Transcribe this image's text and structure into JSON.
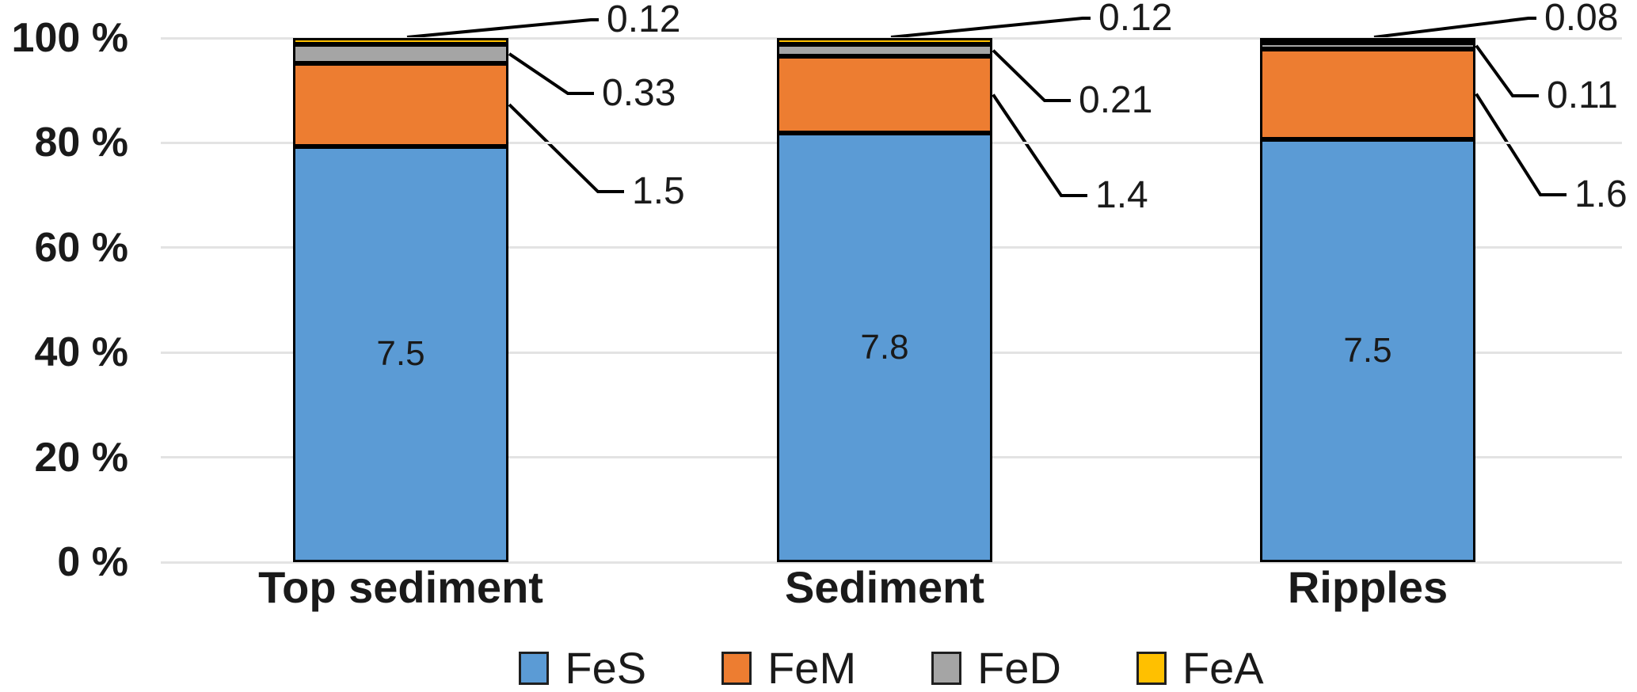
{
  "chart_data": {
    "type": "bar",
    "subtype": "stacked-100-percent",
    "title": "",
    "xlabel": "",
    "ylabel": "",
    "categories": [
      "Top sediment",
      "Sediment",
      "Ripples"
    ],
    "series": [
      {
        "name": "FeS",
        "color": "#5B9BD5",
        "values": [
          7.5,
          7.8,
          7.5
        ],
        "label_style": "inside"
      },
      {
        "name": "FeM",
        "color": "#ED7D31",
        "values": [
          1.5,
          1.4,
          1.6
        ],
        "label_style": "callout"
      },
      {
        "name": "FeD",
        "color": "#A5A5A5",
        "values": [
          0.33,
          0.21,
          0.11
        ],
        "label_style": "callout"
      },
      {
        "name": "FeA",
        "color": "#FFC000",
        "values": [
          0.12,
          0.12,
          0.08
        ],
        "label_style": "callout"
      }
    ],
    "data_labels": {
      "inside": [
        "7.5",
        "7.8",
        "7.5"
      ],
      "callouts": [
        {
          "category": "Top sediment",
          "FeM": "1.5",
          "FeD": "0.33",
          "FeA": "0.12"
        },
        {
          "category": "Sediment",
          "FeM": "1.4",
          "FeD": "0.21",
          "FeA": "0.12"
        },
        {
          "category": "Ripples",
          "FeM": "1.6",
          "FeD": "0.11",
          "FeA": "0.08"
        }
      ]
    },
    "y_axis": {
      "min": 0,
      "max": 100,
      "unit": "%",
      "tick_labels": [
        "0 %",
        "20 %",
        "40 %",
        "60 %",
        "80 %",
        "100 %"
      ],
      "grid": true
    },
    "legend": {
      "position": "bottom",
      "entries": [
        "FeS",
        "FeM",
        "FeD",
        "FeA"
      ]
    }
  },
  "colors": {
    "grid": "#E3E3E3",
    "bar_border": "#000000",
    "leader_line": "#000000",
    "text": "#1A1A1A",
    "background": "#FFFFFF"
  }
}
